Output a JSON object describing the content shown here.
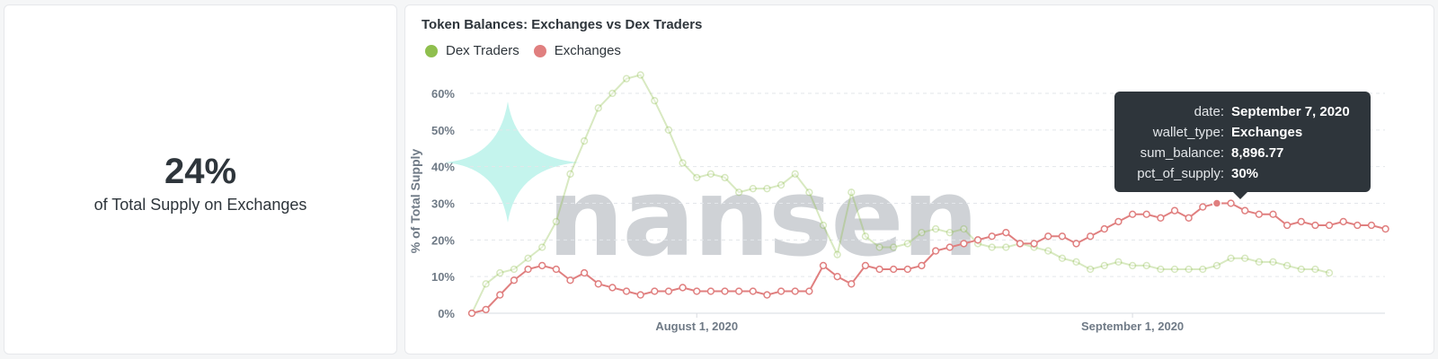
{
  "kpi": {
    "value": "24%",
    "label": "of Total Supply on Exchanges"
  },
  "watermark": {
    "brand": "nansen",
    "accent": "#7ee8d8"
  },
  "colors": {
    "dex": "#8fbf4e",
    "exchanges": "#e07f7f",
    "grid": "#e3e6ea",
    "axis_text": "#6f7a86"
  },
  "chart_data": {
    "type": "line",
    "title": "Token Balances: Exchanges vs Dex Traders",
    "ylabel": "% of Total Supply",
    "xlabel": "",
    "ylim": [
      0,
      60
    ],
    "yticks": [
      "0%",
      "10%",
      "20%",
      "30%",
      "40%",
      "50%",
      "60%"
    ],
    "xtick_labels": [
      {
        "label": "August 1, 2020",
        "date": "2020-08-01"
      },
      {
        "label": "September 1, 2020",
        "date": "2020-09-01"
      }
    ],
    "x_start": "2020-07-16",
    "series": [
      {
        "name": "Dex Traders",
        "color": "#8fbf4e",
        "values": [
          0,
          8,
          11,
          12,
          15,
          18,
          25,
          38,
          47,
          56,
          60,
          64,
          65,
          58,
          50,
          41,
          37,
          38,
          37,
          33,
          34,
          34,
          35,
          38,
          33,
          24,
          16,
          33,
          21,
          18,
          18,
          19,
          22,
          23,
          22,
          23,
          19,
          18,
          18,
          19,
          18,
          17,
          15,
          14,
          12,
          13,
          14,
          13,
          13,
          12,
          12,
          12,
          12,
          13,
          15,
          15,
          14,
          14,
          13,
          12,
          12,
          11
        ]
      },
      {
        "name": "Exchanges",
        "color": "#e07f7f",
        "values": [
          0,
          1,
          5,
          9,
          12,
          13,
          12,
          9,
          11,
          8,
          7,
          6,
          5,
          6,
          6,
          7,
          6,
          6,
          6,
          6,
          6,
          5,
          6,
          6,
          6,
          13,
          10,
          8,
          13,
          12,
          12,
          12,
          13,
          17,
          18,
          19,
          20,
          21,
          22,
          19,
          19,
          21,
          21,
          19,
          21,
          23,
          25,
          27,
          27,
          26,
          28,
          26,
          29,
          30,
          30,
          28,
          27,
          27,
          24,
          25,
          24,
          24,
          25,
          24,
          24,
          23
        ]
      }
    ],
    "tooltip": {
      "rows": [
        {
          "key": "date:",
          "value": "September 7, 2020"
        },
        {
          "key": "wallet_type:",
          "value": "Exchanges"
        },
        {
          "key": "sum_balance:",
          "value": "8,896.77"
        },
        {
          "key": "pct_of_supply:",
          "value": "30%"
        }
      ],
      "point_date": "2020-09-07",
      "point_value": 30
    }
  }
}
